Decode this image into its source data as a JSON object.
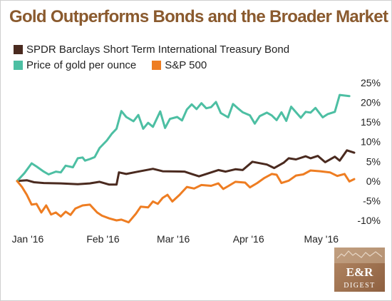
{
  "title": "Gold Outperforms Bonds and the Broader Market",
  "legend": [
    {
      "label": "SPDR Barclays Short Term International Treasury Bond",
      "color": "#4a2a1f"
    },
    {
      "label": "Price of gold per ounce",
      "color": "#4dbfa3"
    },
    {
      "label": "S&P 500",
      "color": "#ee7d22"
    }
  ],
  "logo": {
    "text_top": "E&R",
    "text_bottom": "DIGEST"
  },
  "chart_data": {
    "type": "line",
    "x_range": [
      "2016-01-01",
      "2016-05-19"
    ],
    "x_ticks": [
      {
        "label": "Jan '16",
        "date": "2016-01-01"
      },
      {
        "label": "Feb '16",
        "date": "2016-02-01"
      },
      {
        "label": "Mar '16",
        "date": "2016-03-01"
      },
      {
        "label": "Apr '16",
        "date": "2016-04-01"
      },
      {
        "label": "May '16",
        "date": "2016-05-01"
      }
    ],
    "y_ticks": [
      "25%",
      "20%",
      "15%",
      "10%",
      "5%",
      "0%",
      "-5%",
      "-10%"
    ],
    "ylim": [
      -12,
      25
    ],
    "grid": false,
    "legend_position": "top-left",
    "series": [
      {
        "name": "SPDR Barclays Short Term International Treasury Bond",
        "color": "#4a2a1f",
        "points": [
          [
            "2016-01-01",
            0
          ],
          [
            "2016-01-05",
            0.2
          ],
          [
            "2016-01-08",
            -0.3
          ],
          [
            "2016-01-12",
            -0.5
          ],
          [
            "2016-01-19",
            -0.6
          ],
          [
            "2016-01-26",
            -0.8
          ],
          [
            "2016-01-31",
            -0.6
          ],
          [
            "2016-02-04",
            -0.2
          ],
          [
            "2016-02-08",
            -0.9
          ],
          [
            "2016-02-11",
            -0.9
          ],
          [
            "2016-02-12",
            2.2
          ],
          [
            "2016-02-15",
            1.8
          ],
          [
            "2016-02-19",
            2.3
          ],
          [
            "2016-02-26",
            3.1
          ],
          [
            "2016-03-01",
            2.5
          ],
          [
            "2016-03-10",
            2.4
          ],
          [
            "2016-03-13",
            1.8
          ],
          [
            "2016-03-16",
            1.2
          ],
          [
            "2016-03-19",
            1.8
          ],
          [
            "2016-03-24",
            2.8
          ],
          [
            "2016-03-27",
            2.4
          ],
          [
            "2016-03-31",
            3
          ],
          [
            "2016-04-03",
            2.8
          ],
          [
            "2016-04-07",
            4.9
          ],
          [
            "2016-04-13",
            4.2
          ],
          [
            "2016-04-16",
            3.3
          ],
          [
            "2016-04-20",
            4.7
          ],
          [
            "2016-04-22",
            5.8
          ],
          [
            "2016-04-25",
            5.5
          ],
          [
            "2016-04-29",
            6.3
          ],
          [
            "2016-05-01",
            5.8
          ],
          [
            "2016-05-04",
            6.4
          ],
          [
            "2016-05-07",
            4.8
          ],
          [
            "2016-05-11",
            6.2
          ],
          [
            "2016-05-13",
            5.2
          ],
          [
            "2016-05-16",
            7.8
          ],
          [
            "2016-05-19",
            7.2
          ]
        ]
      },
      {
        "name": "Price of gold per ounce",
        "color": "#4dbfa3",
        "points": [
          [
            "2016-01-01",
            0
          ],
          [
            "2016-01-04",
            2
          ],
          [
            "2016-01-07",
            4.5
          ],
          [
            "2016-01-09",
            3.7
          ],
          [
            "2016-01-12",
            2.4
          ],
          [
            "2016-01-14",
            1.7
          ],
          [
            "2016-01-17",
            2.4
          ],
          [
            "2016-01-19",
            2.2
          ],
          [
            "2016-01-21",
            3.9
          ],
          [
            "2016-01-24",
            3.5
          ],
          [
            "2016-01-26",
            5.8
          ],
          [
            "2016-01-28",
            6
          ],
          [
            "2016-01-29",
            5.2
          ],
          [
            "2016-01-31",
            5.6
          ],
          [
            "2016-02-02",
            6.1
          ],
          [
            "2016-02-04",
            8.4
          ],
          [
            "2016-02-07",
            10.3
          ],
          [
            "2016-02-09",
            12
          ],
          [
            "2016-02-11",
            13.3
          ],
          [
            "2016-02-13",
            17.8
          ],
          [
            "2016-02-15",
            16.3
          ],
          [
            "2016-02-18",
            15.2
          ],
          [
            "2016-02-20",
            16.8
          ],
          [
            "2016-02-22",
            13.3
          ],
          [
            "2016-02-24",
            14.8
          ],
          [
            "2016-02-26",
            13.8
          ],
          [
            "2016-02-29",
            17.7
          ],
          [
            "2016-03-02",
            13.5
          ],
          [
            "2016-03-04",
            15.8
          ],
          [
            "2016-03-07",
            16.3
          ],
          [
            "2016-03-09",
            15.4
          ],
          [
            "2016-03-11",
            18.2
          ],
          [
            "2016-03-13",
            19.5
          ],
          [
            "2016-03-15",
            18.3
          ],
          [
            "2016-03-17",
            19.8
          ],
          [
            "2016-03-19",
            18.5
          ],
          [
            "2016-03-21",
            18.8
          ],
          [
            "2016-03-23",
            20.1
          ],
          [
            "2016-03-25",
            17.3
          ],
          [
            "2016-03-28",
            16.2
          ],
          [
            "2016-03-30",
            19.6
          ],
          [
            "2016-04-01",
            18.5
          ],
          [
            "2016-04-03",
            17.5
          ],
          [
            "2016-04-06",
            16.7
          ],
          [
            "2016-04-08",
            14.6
          ],
          [
            "2016-04-10",
            16.5
          ],
          [
            "2016-04-13",
            17.4
          ],
          [
            "2016-04-15",
            16.7
          ],
          [
            "2016-04-17",
            15.5
          ],
          [
            "2016-04-19",
            17.5
          ],
          [
            "2016-04-21",
            15.3
          ],
          [
            "2016-04-23",
            18.9
          ],
          [
            "2016-04-25",
            17.5
          ],
          [
            "2016-04-27",
            16.1
          ],
          [
            "2016-04-29",
            17.6
          ],
          [
            "2016-05-01",
            17.4
          ],
          [
            "2016-05-03",
            18.6
          ],
          [
            "2016-05-06",
            16.2
          ],
          [
            "2016-05-08",
            17
          ],
          [
            "2016-05-11",
            17.6
          ],
          [
            "2016-05-13",
            21.9
          ],
          [
            "2016-05-17",
            21.6
          ]
        ]
      },
      {
        "name": "S&P 500",
        "color": "#ee7d22",
        "points": [
          [
            "2016-01-01",
            0
          ],
          [
            "2016-01-03",
            -1.5
          ],
          [
            "2016-01-05",
            -3.5
          ],
          [
            "2016-01-07",
            -6
          ],
          [
            "2016-01-09",
            -5.8
          ],
          [
            "2016-01-11",
            -8
          ],
          [
            "2016-01-13",
            -6.2
          ],
          [
            "2016-01-15",
            -8.5
          ],
          [
            "2016-01-17",
            -8
          ],
          [
            "2016-01-19",
            -9
          ],
          [
            "2016-01-21",
            -7.8
          ],
          [
            "2016-01-23",
            -8.6
          ],
          [
            "2016-01-25",
            -7
          ],
          [
            "2016-01-28",
            -6.2
          ],
          [
            "2016-01-31",
            -6
          ],
          [
            "2016-02-03",
            -8
          ],
          [
            "2016-02-05",
            -8.8
          ],
          [
            "2016-02-08",
            -9.5
          ],
          [
            "2016-02-11",
            -10
          ],
          [
            "2016-02-13",
            -9.8
          ],
          [
            "2016-02-16",
            -10.5
          ],
          [
            "2016-02-19",
            -8.3
          ],
          [
            "2016-02-21",
            -6.5
          ],
          [
            "2016-02-24",
            -6.7
          ],
          [
            "2016-02-26",
            -5.2
          ],
          [
            "2016-02-28",
            -5.8
          ],
          [
            "2016-03-01",
            -4.3
          ],
          [
            "2016-03-03",
            -3.5
          ],
          [
            "2016-03-05",
            -5.2
          ],
          [
            "2016-03-08",
            -3.5
          ],
          [
            "2016-03-11",
            -1.5
          ],
          [
            "2016-03-14",
            -1.9
          ],
          [
            "2016-03-17",
            -1
          ],
          [
            "2016-03-21",
            -1.2
          ],
          [
            "2016-03-24",
            -0.6
          ],
          [
            "2016-03-26",
            -2
          ],
          [
            "2016-03-28",
            -1.3
          ],
          [
            "2016-03-31",
            -0.2
          ],
          [
            "2016-04-04",
            -0.4
          ],
          [
            "2016-04-06",
            -1.6
          ],
          [
            "2016-04-09",
            -0.5
          ],
          [
            "2016-04-12",
            0.8
          ],
          [
            "2016-04-15",
            1.8
          ],
          [
            "2016-04-17",
            1.6
          ],
          [
            "2016-04-19",
            -0.5
          ],
          [
            "2016-04-22",
            0.1
          ],
          [
            "2016-04-25",
            1.4
          ],
          [
            "2016-04-28",
            1.7
          ],
          [
            "2016-05-01",
            2.7
          ],
          [
            "2016-05-05",
            2.5
          ],
          [
            "2016-05-09",
            2.2
          ],
          [
            "2016-05-12",
            1.3
          ],
          [
            "2016-05-15",
            1.8
          ],
          [
            "2016-05-17",
            -0.1
          ],
          [
            "2016-05-19",
            0.5
          ]
        ]
      }
    ]
  }
}
